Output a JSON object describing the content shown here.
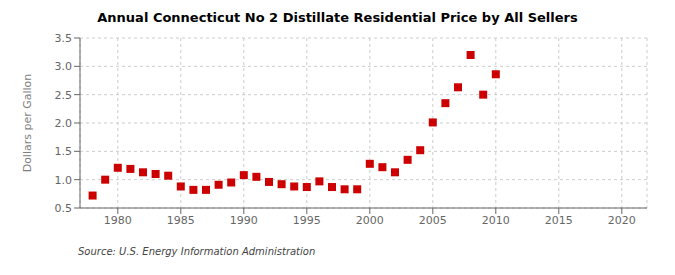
{
  "chart_data": {
    "type": "scatter",
    "title": "Annual Connecticut No 2 Distillate Residential Price by All Sellers",
    "ylabel": "Dollars per Gallon",
    "annotation": "Source: U.S. Energy Information Administration",
    "x": [
      1978,
      1979,
      1980,
      1981,
      1982,
      1983,
      1984,
      1985,
      1986,
      1987,
      1988,
      1989,
      1990,
      1991,
      1992,
      1993,
      1994,
      1995,
      1996,
      1997,
      1998,
      1999,
      2000,
      2001,
      2002,
      2003,
      2004,
      2005,
      2006,
      2007,
      2008,
      2009,
      2010
    ],
    "values": [
      0.72,
      1.0,
      1.21,
      1.19,
      1.13,
      1.1,
      1.07,
      0.88,
      0.82,
      0.82,
      0.91,
      0.95,
      1.08,
      1.05,
      0.96,
      0.92,
      0.88,
      0.87,
      0.97,
      0.87,
      0.83,
      0.83,
      1.28,
      1.22,
      1.13,
      1.35,
      1.52,
      2.01,
      2.35,
      2.63,
      3.2,
      2.5,
      2.86
    ],
    "color": "#cc0000",
    "marker": "square",
    "xlim": [
      1977,
      2022
    ],
    "ylim": [
      0.5,
      3.5
    ],
    "xticks": [
      1980,
      1985,
      1990,
      1995,
      2000,
      2005,
      2010,
      2015,
      2020
    ],
    "yticks": [
      0.5,
      {
        "value": 1.0,
        "label": "1.0"
      },
      1.5,
      {
        "value": 2.0,
        "label": "2.0"
      },
      2.5,
      {
        "value": 3.0,
        "label": "3.0"
      },
      3.5
    ],
    "grid": true
  }
}
